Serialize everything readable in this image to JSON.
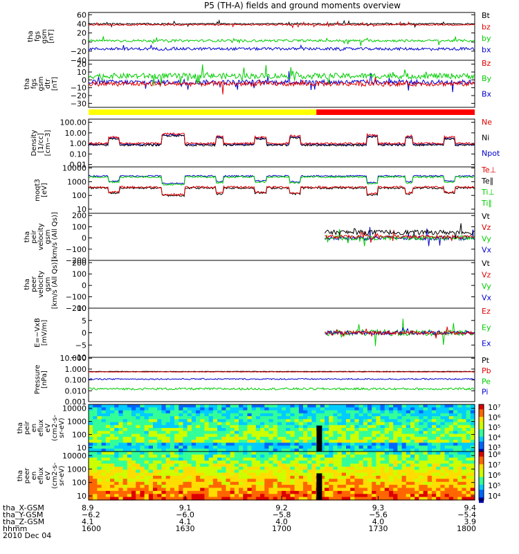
{
  "title": "P5 (TH-A) fields and ground moments overview",
  "colors": {
    "black": "#000000",
    "red": "#e00000",
    "green": "#00cc00",
    "blue": "#0000cc",
    "yellow": "#ffff00",
    "brightred": "#ff0000"
  },
  "panels": [
    {
      "ylabel": [
        "tha",
        "fgs",
        "gsm",
        "[nT]"
      ],
      "ticks": [
        "60",
        "40",
        "20",
        "0",
        "−20",
        "−40"
      ],
      "tickvals": [
        60,
        40,
        20,
        0,
        -20,
        -40
      ],
      "ylim": [
        -40,
        65
      ],
      "log": false,
      "legend": [
        {
          "text": "Bt",
          "color": "black"
        },
        {
          "text": "bz",
          "color": "red"
        },
        {
          "text": "by",
          "color": "green"
        },
        {
          "text": "bx",
          "color": "blue"
        }
      ]
    },
    {
      "ylabel": [
        "tha",
        "fgs",
        "gsm",
        "dtr",
        "[nT]"
      ],
      "ticks": [
        "20",
        "10",
        "0",
        "−10",
        "−20",
        "−30"
      ],
      "tickvals": [
        20,
        10,
        0,
        -10,
        -20,
        -30
      ],
      "ylim": [
        -35,
        25
      ],
      "log": false,
      "legend": [
        {
          "text": "Bz",
          "color": "red"
        },
        {
          "text": "By",
          "color": "green"
        },
        {
          "text": "Bx",
          "color": "blue"
        }
      ]
    },
    {
      "ylabel": [
        "Density",
        "[1/cc]",
        "[cm−3]"
      ],
      "ticks": [
        "100.00",
        "10.00",
        "1.00",
        "0.10",
        "0.01"
      ],
      "tickvals": [
        100,
        10,
        1,
        0.1,
        0.01
      ],
      "ylim": [
        0.006,
        200
      ],
      "log": true,
      "legend": [
        {
          "text": "Ne",
          "color": "red"
        },
        {
          "text": "Ni",
          "color": "black"
        },
        {
          "text": "Npot",
          "color": "blue"
        }
      ]
    },
    {
      "ylabel": [
        "moqt3",
        "[eV]"
      ],
      "ticks": [
        "10000",
        "1000",
        "100",
        "10"
      ],
      "tickvals": [
        10000,
        1000,
        100,
        10
      ],
      "ylim": [
        5,
        12000
      ],
      "log": true,
      "legend": [
        {
          "text": "Te⊥",
          "color": "red"
        },
        {
          "text": "Te∥",
          "color": "black"
        },
        {
          "text": "Ti⊥",
          "color": "green"
        },
        {
          "text": "Ti∥",
          "color": "green"
        }
      ]
    },
    {
      "ylabel": [
        "tha",
        "peir",
        "velocity",
        "gsm",
        "[km/s (All Qs)]"
      ],
      "ticks": [
        "200",
        "100",
        "0",
        "−100",
        "−200"
      ],
      "tickvals": [
        200,
        100,
        0,
        -100,
        -200
      ],
      "ylim": [
        -200,
        220
      ],
      "log": false,
      "legend": [
        {
          "text": "Vt",
          "color": "black"
        },
        {
          "text": "Vz",
          "color": "red"
        },
        {
          "text": "Vy",
          "color": "green"
        },
        {
          "text": "Vx",
          "color": "blue"
        }
      ]
    },
    {
      "ylabel": [
        "tha",
        "peer",
        "velocity",
        "gsm",
        "[km/s (All Qs)]"
      ],
      "ticks": [
        "200",
        "100",
        "0",
        "−100",
        "−200"
      ],
      "tickvals": [
        200,
        100,
        0,
        -100,
        -200
      ],
      "ylim": [
        -200,
        220
      ],
      "log": false,
      "legend": [
        {
          "text": "Vt",
          "color": "black"
        },
        {
          "text": "Vz",
          "color": "red"
        },
        {
          "text": "Vy",
          "color": "green"
        },
        {
          "text": "Vx",
          "color": "blue"
        }
      ]
    },
    {
      "ylabel": [
        "E=−VxB",
        "[mV/m]"
      ],
      "ticks": [
        "10",
        "5",
        "0",
        "−5",
        "−10"
      ],
      "tickvals": [
        10,
        5,
        0,
        -5,
        -10
      ],
      "ylim": [
        -10,
        10
      ],
      "log": false,
      "legend": [
        {
          "text": "Ez",
          "color": "red"
        },
        {
          "text": "Ey",
          "color": "green"
        },
        {
          "text": "Ex",
          "color": "blue"
        }
      ]
    },
    {
      "ylabel": [
        "Pressure",
        "[nPa]"
      ],
      "ticks": [
        "10.000",
        "1.000",
        "0.100",
        "0.010",
        "0.001"
      ],
      "tickvals": [
        10,
        1,
        0.1,
        0.01,
        0.001
      ],
      "ylim": [
        0.001,
        12
      ],
      "log": true,
      "legend": [
        {
          "text": "Pt",
          "color": "black"
        },
        {
          "text": "Pb",
          "color": "red"
        },
        {
          "text": "Pe",
          "color": "green"
        },
        {
          "text": "Pi",
          "color": "blue"
        }
      ]
    },
    {
      "ylabel": [
        "tha",
        "peir",
        "en",
        "eflux",
        "eV",
        "(cm2-s-",
        "sr-eV)"
      ],
      "ticks": [
        "10000",
        "1000",
        "100",
        "10"
      ],
      "tickvals": [
        10000,
        1000,
        100,
        10
      ],
      "ylim": [
        5,
        20000
      ],
      "log": true,
      "cbar": [
        "10⁷",
        "10⁶",
        "10⁵",
        "10⁴",
        "10³"
      ]
    },
    {
      "ylabel": [
        "tha",
        "peer",
        "en",
        "eflux",
        "eV",
        "(cm2-s-",
        "sr-eV)"
      ],
      "ticks": [
        "10000",
        "1000",
        "100",
        "10"
      ],
      "tickvals": [
        10000,
        1000,
        100,
        10
      ],
      "ylim": [
        5,
        20000
      ],
      "log": true,
      "cbar": [
        "10⁸",
        "10⁷",
        "10⁶",
        "10⁵",
        "10⁴"
      ]
    }
  ],
  "chart_data": {
    "type": "line",
    "title": "P5 (TH-A) fields and ground moments overview",
    "x_range": [
      "1600",
      "1800"
    ],
    "xaxis": {
      "row_labels": [
        "tha_X-GSM",
        "tha_Y-GSM",
        "tha_Z-GSM",
        "hhmm",
        "2010 Dec 04"
      ],
      "ticks": [
        {
          "X": "8.9",
          "Y": "−6.2",
          "Z": "4.1",
          "hhmm": "1600"
        },
        {
          "X": "9.1",
          "Y": "−6.0",
          "Z": "4.1",
          "hhmm": "1630"
        },
        {
          "X": "9.2",
          "Y": "−5.8",
          "Z": "4.0",
          "hhmm": "1700"
        },
        {
          "X": "9.3",
          "Y": "−5.6",
          "Z": "4.0",
          "hhmm": "1730"
        },
        {
          "X": "9.4",
          "Y": "−5.4",
          "Z": "3.9",
          "hhmm": "1800"
        }
      ]
    },
    "mode_bar": [
      {
        "from": 0,
        "to": 0.59,
        "color": "yellow"
      },
      {
        "from": 0.59,
        "to": 1,
        "color": "brightred"
      }
    ],
    "data_gap": {
      "from": 0.585,
      "to": 0.61
    },
    "series_levels": {
      "Bt": 40,
      "bz": 38,
      "by": 3,
      "bx": -15,
      "Bz": -5,
      "By": 5,
      "Bx": -3,
      "Ne": 1.0,
      "Ni": 0.7,
      "Npot": 0.8,
      "Te_perp": 400,
      "Te_par": 350,
      "Ti_perp": 1500,
      "Ti_par": 2200,
      "Pt": 0.6,
      "Pb": 0.55,
      "Pe": 0.015,
      "Pi": 0.12
    }
  }
}
